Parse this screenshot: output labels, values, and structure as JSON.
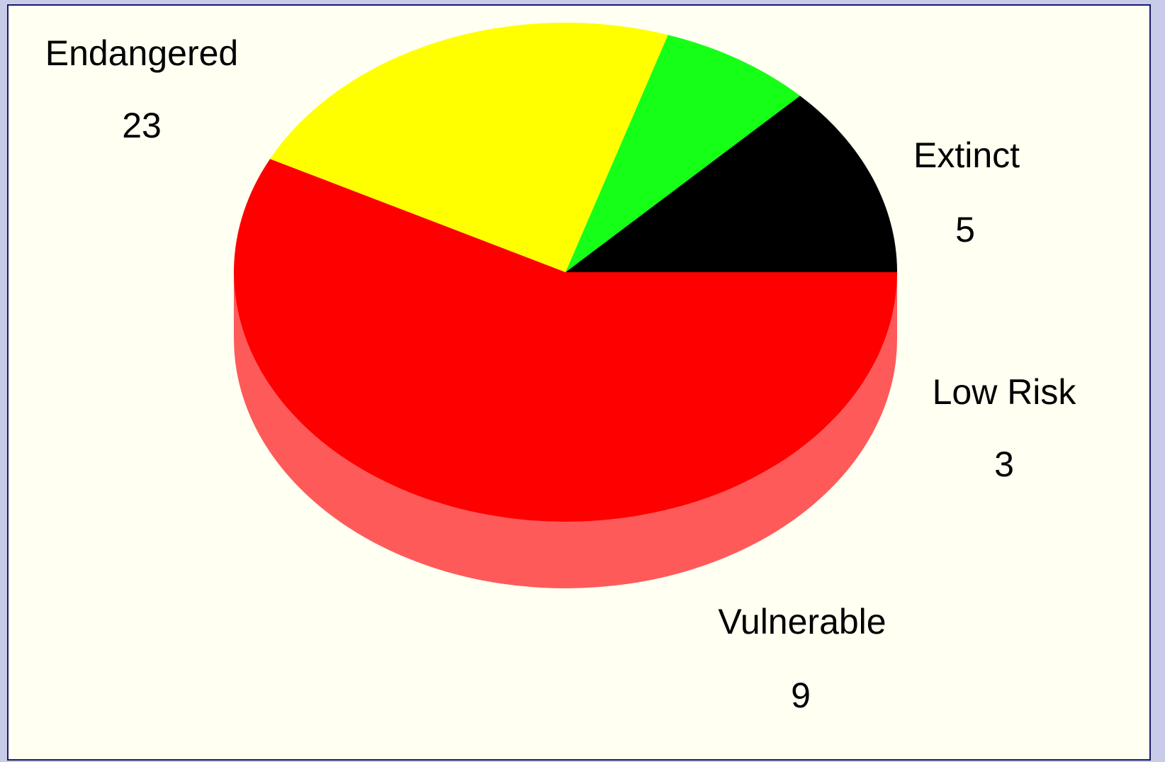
{
  "chart_data": {
    "type": "pie",
    "title": "",
    "slices": [
      {
        "label": "Extinct",
        "value": 5,
        "color": "#000000",
        "side_color": "#333333"
      },
      {
        "label": "Low Risk",
        "value": 3,
        "color": "#16ff16",
        "side_color": "#66ff66"
      },
      {
        "label": "Vulnerable",
        "value": 9,
        "color": "#ffff00",
        "side_color": "#ffff5a"
      },
      {
        "label": "Endangered",
        "value": 23,
        "color": "#ff0000",
        "side_color": "#ff5a5a"
      }
    ],
    "style": "3d"
  },
  "colors": {
    "background": "#c8cce8",
    "panel": "#fffff2",
    "border": "#1a1a66"
  }
}
